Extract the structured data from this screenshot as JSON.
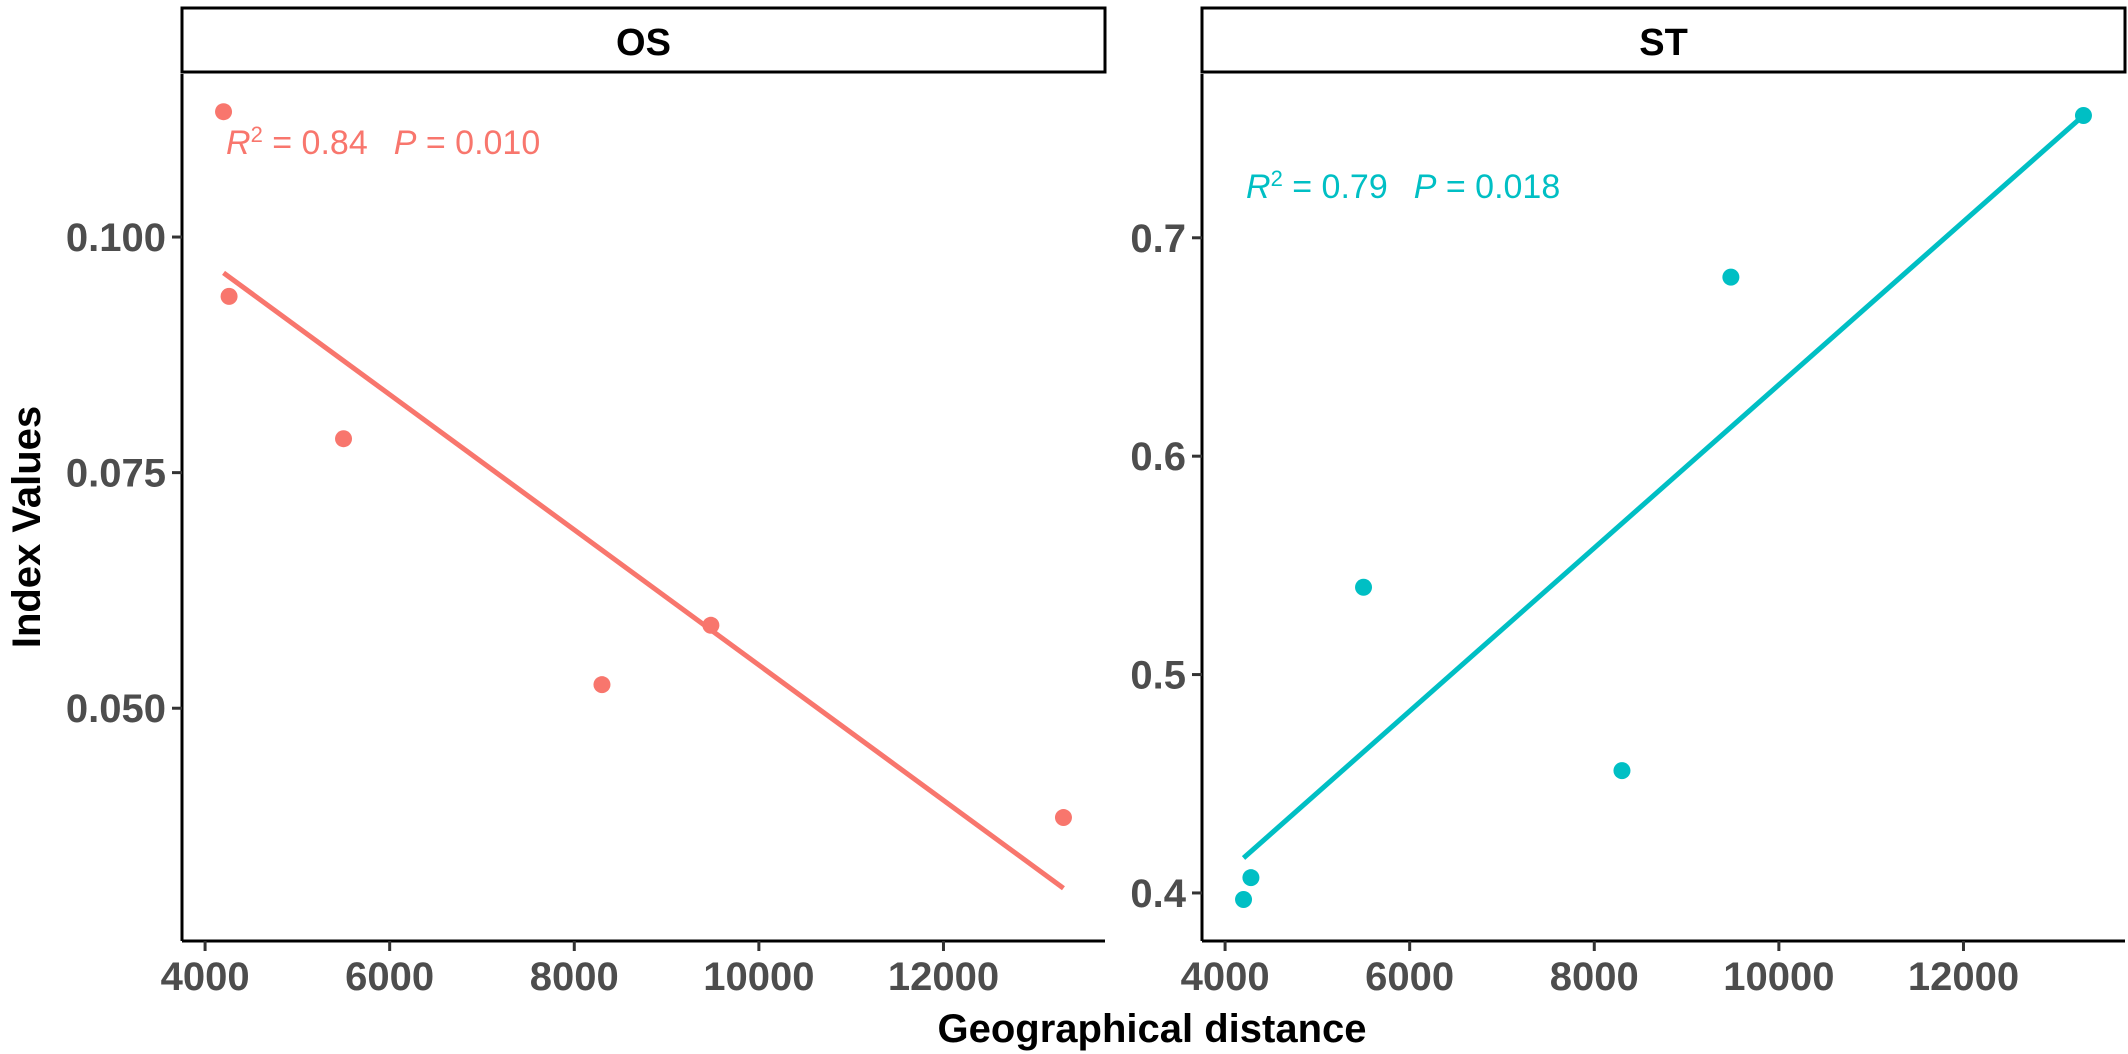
{
  "chart_data": {
    "type": "scatter",
    "xlabel": "Geographical distance",
    "ylabel": "Index Values",
    "grid": false,
    "legend": "none",
    "panels": [
      {
        "name": "OS",
        "color": "#F8766D",
        "x": [
          4200,
          4260,
          5500,
          8300,
          9480,
          13300
        ],
        "y": [
          0.1133,
          0.0937,
          0.0786,
          0.0525,
          0.0588,
          0.0384
        ],
        "fit_line": {
          "x": [
            4200,
            13300
          ],
          "y": [
            0.0962,
            0.0309
          ]
        },
        "xlim": [
          3750,
          13750
        ],
        "ylim": [
          0.0253,
          0.1173
        ],
        "xticks": [
          4000,
          6000,
          8000,
          10000,
          12000
        ],
        "xtick_labels": [
          "4000",
          "6000",
          "8000",
          "10000",
          "12000"
        ],
        "yticks": [
          0.05,
          0.075,
          0.1
        ],
        "ytick_labels": [
          "0.050",
          "0.075",
          "0.100"
        ],
        "annotation": {
          "r2_prefix": "R",
          "r2_sup": "2",
          "r2_text": " = 0.84",
          "p_prefix": "P",
          "p_text": " = 0.010"
        }
      },
      {
        "name": "ST",
        "color": "#00BFC4",
        "x": [
          4200,
          4280,
          5500,
          8300,
          9480,
          13300
        ],
        "y": [
          0.397,
          0.407,
          0.54,
          0.456,
          0.682,
          0.756
        ],
        "fit_line": {
          "x": [
            4200,
            13300
          ],
          "y": [
            0.416,
            0.756
          ]
        },
        "xlim": [
          3750,
          13750
        ],
        "ylim": [
          0.378,
          0.775
        ],
        "xticks": [
          4000,
          6000,
          8000,
          10000,
          12000
        ],
        "xtick_labels": [
          "4000",
          "6000",
          "8000",
          "10000",
          "12000"
        ],
        "yticks": [
          0.4,
          0.5,
          0.6,
          0.7
        ],
        "ytick_labels": [
          "0.4",
          "0.5",
          "0.6",
          "0.7"
        ],
        "annotation": {
          "r2_prefix": "R",
          "r2_sup": "2",
          "r2_text": " = 0.79",
          "p_prefix": "P",
          "p_text": " = 0.018"
        }
      }
    ]
  }
}
